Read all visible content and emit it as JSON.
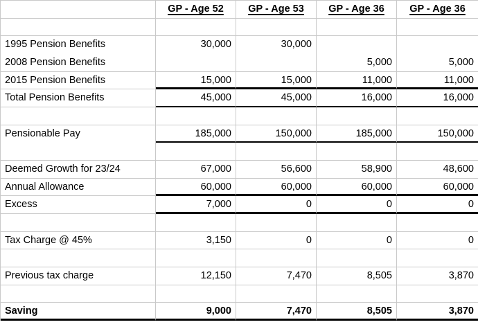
{
  "sheet": {
    "description": "Pension annual allowance tax comparison spreadsheet",
    "corner_label": "",
    "columns": [
      {
        "label": "GP - Age 52"
      },
      {
        "label": "GP - Age 53"
      },
      {
        "label": "GP - Age 36"
      },
      {
        "label": "GP - Age 36"
      }
    ],
    "rows": [
      {
        "label": "",
        "values": [
          "",
          "",
          "",
          ""
        ],
        "bold": false,
        "rule_label": "grid",
        "rule_data": "grid"
      },
      {
        "label": "1995 Pension Benefits",
        "values": [
          "30,000",
          "30,000",
          "",
          ""
        ],
        "bold": false,
        "rule_label": "none",
        "rule_data": "none"
      },
      {
        "label": "2008 Pension Benefits",
        "values": [
          "",
          "",
          "5,000",
          "5,000"
        ],
        "bold": false,
        "rule_label": "grid",
        "rule_data": "grid"
      },
      {
        "label": "2015 Pension Benefits",
        "values": [
          "15,000",
          "15,000",
          "11,000",
          "11,000"
        ],
        "bold": false,
        "rule_label": "grid",
        "rule_data": "thick"
      },
      {
        "label": "Total Pension Benefits",
        "values": [
          "45,000",
          "45,000",
          "16,000",
          "16,000"
        ],
        "bold": false,
        "rule_label": "grid",
        "rule_data": "thin"
      },
      {
        "label": "",
        "values": [
          "",
          "",
          "",
          ""
        ],
        "bold": false,
        "rule_label": "grid",
        "rule_data": "grid"
      },
      {
        "label": "Pensionable Pay",
        "values": [
          "185,000",
          "150,000",
          "185,000",
          "150,000"
        ],
        "bold": false,
        "rule_label": "none",
        "rule_data": "thin"
      },
      {
        "label": "",
        "values": [
          "",
          "",
          "",
          ""
        ],
        "bold": false,
        "rule_label": "grid",
        "rule_data": "grid"
      },
      {
        "label": "Deemed Growth for 23/24",
        "values": [
          "67,000",
          "56,600",
          "58,900",
          "48,600"
        ],
        "bold": false,
        "rule_label": "grid",
        "rule_data": "grid"
      },
      {
        "label": "Annual Allowance",
        "values": [
          "60,000",
          "60,000",
          "60,000",
          "60,000"
        ],
        "bold": false,
        "rule_label": "grid",
        "rule_data": "thick"
      },
      {
        "label": "Excess",
        "values": [
          "7,000",
          "0",
          "0",
          "0"
        ],
        "bold": false,
        "rule_label": "grid",
        "rule_data": "thick"
      },
      {
        "label": "",
        "values": [
          "",
          "",
          "",
          ""
        ],
        "bold": false,
        "rule_label": "grid",
        "rule_data": "grid"
      },
      {
        "label": "Tax Charge @ 45%",
        "values": [
          "3,150",
          "0",
          "0",
          "0"
        ],
        "bold": false,
        "rule_label": "grid",
        "rule_data": "grid"
      },
      {
        "label": "",
        "values": [
          "",
          "",
          "",
          ""
        ],
        "bold": false,
        "rule_label": "grid",
        "rule_data": "grid"
      },
      {
        "label": "Previous tax charge",
        "values": [
          "12,150",
          "7,470",
          "8,505",
          "3,870"
        ],
        "bold": false,
        "rule_label": "grid",
        "rule_data": "grid"
      },
      {
        "label": "",
        "values": [
          "",
          "",
          "",
          ""
        ],
        "bold": false,
        "rule_label": "grid",
        "rule_data": "grid"
      },
      {
        "label": "Saving",
        "values": [
          "9,000",
          "7,470",
          "8,505",
          "3,870"
        ],
        "bold": true,
        "rule_label": "thick",
        "rule_data": "thick"
      }
    ]
  },
  "colors": {
    "gridline": "#c9c9c9",
    "rule_border": "#000000",
    "background": "#ffffff",
    "text": "#000000"
  }
}
